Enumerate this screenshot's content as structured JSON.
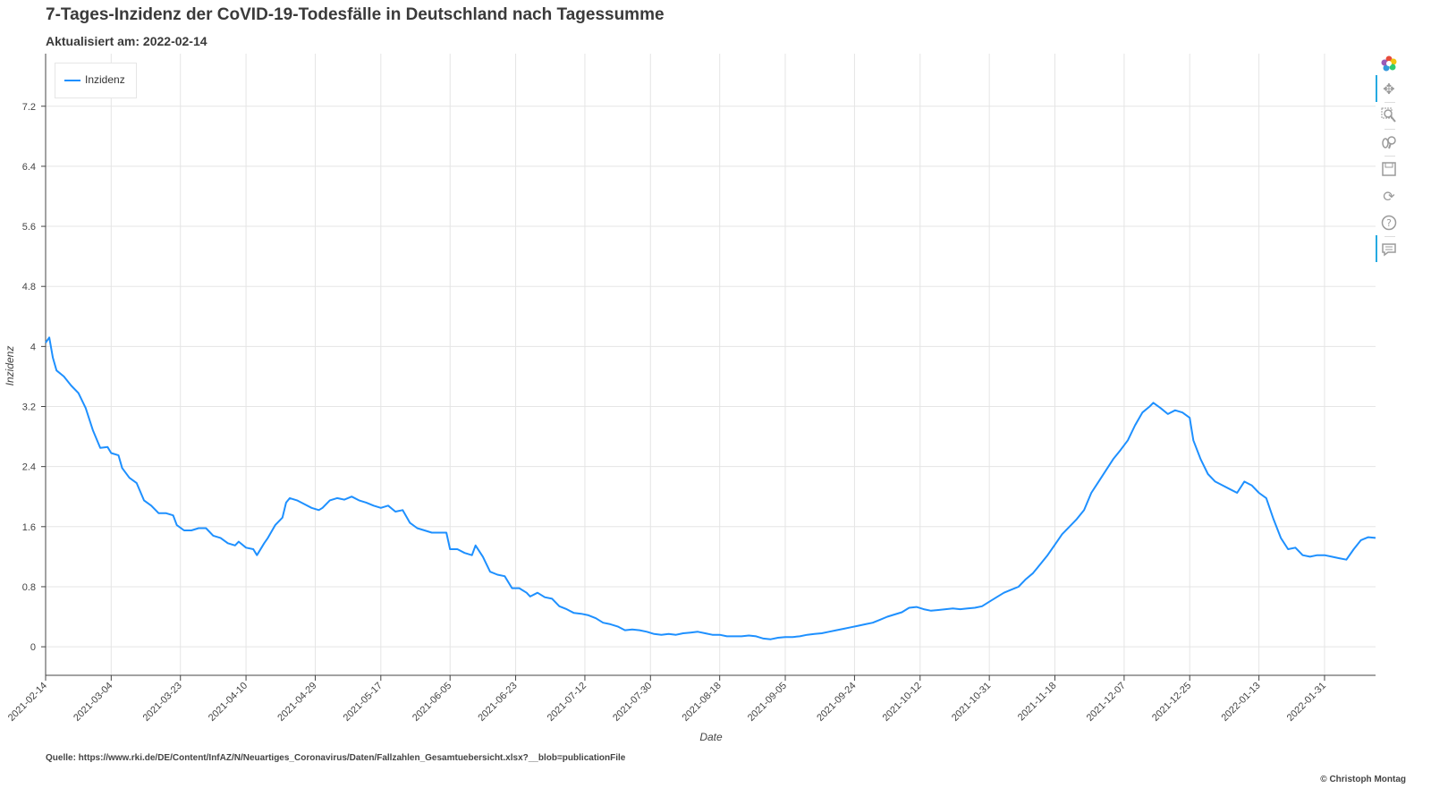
{
  "header": {
    "title": "7-Tages-Inzidenz der CoVID-19-Todesfälle in Deutschland nach Tagessumme",
    "subtitle": "Aktualisiert am: 2022-02-14"
  },
  "footer": {
    "source": "Quelle: https://www.rki.de/DE/Content/InfAZ/N/Neuartiges_Coronavirus/Daten/Fallzahlen_Gesamtuebersicht.xlsx?__blob=publicationFile",
    "copyright": "© Christoph Montag"
  },
  "toolbar": {
    "icons": [
      "bokeh-logo-icon",
      "pan-icon",
      "box-zoom-icon",
      "wheel-zoom-icon",
      "save-icon",
      "reset-icon",
      "help-icon",
      "hover-icon"
    ]
  },
  "chart_data": {
    "type": "line",
    "title": "7-Tages-Inzidenz der CoVID-19-Todesfälle in Deutschland nach Tagessumme",
    "subtitle": "Aktualisiert am: 2022-02-14",
    "xlabel": "Date",
    "ylabel": "Inzidenz",
    "x_range": [
      "2021-02-14",
      "2022-02-14"
    ],
    "ylim": [
      -0.38,
      7.9
    ],
    "y_ticks": [
      0,
      0.8,
      1.6,
      2.4,
      3.2,
      4,
      4.8,
      5.6,
      6.4,
      7.2
    ],
    "y_tick_labels": [
      "0",
      "0.8",
      "1.6",
      "2.4",
      "3.2",
      "4",
      "4.8",
      "5.6",
      "6.4",
      "7.2"
    ],
    "x_ticks": [
      "2021-02-14",
      "2021-03-04",
      "2021-03-23",
      "2021-04-10",
      "2021-04-29",
      "2021-05-17",
      "2021-06-05",
      "2021-06-23",
      "2021-07-12",
      "2021-07-30",
      "2021-08-18",
      "2021-09-05",
      "2021-09-24",
      "2021-10-12",
      "2021-10-31",
      "2021-11-18",
      "2021-12-07",
      "2021-12-25",
      "2022-01-13",
      "2022-01-31"
    ],
    "grid": true,
    "legend_position": "top-left",
    "series": [
      {
        "name": "Inzidenz",
        "color": "#1e90ff",
        "points": [
          [
            "2021-02-14",
            4.05
          ],
          [
            "2021-02-15",
            4.12
          ],
          [
            "2021-02-16",
            3.85
          ],
          [
            "2021-02-17",
            3.68
          ],
          [
            "2021-02-19",
            3.6
          ],
          [
            "2021-02-21",
            3.48
          ],
          [
            "2021-02-23",
            3.38
          ],
          [
            "2021-02-25",
            3.18
          ],
          [
            "2021-02-27",
            2.88
          ],
          [
            "2021-03-01",
            2.65
          ],
          [
            "2021-03-03",
            2.66
          ],
          [
            "2021-03-04",
            2.58
          ],
          [
            "2021-03-06",
            2.55
          ],
          [
            "2021-03-07",
            2.38
          ],
          [
            "2021-03-09",
            2.25
          ],
          [
            "2021-03-11",
            2.18
          ],
          [
            "2021-03-13",
            1.95
          ],
          [
            "2021-03-15",
            1.88
          ],
          [
            "2021-03-17",
            1.78
          ],
          [
            "2021-03-19",
            1.78
          ],
          [
            "2021-03-21",
            1.75
          ],
          [
            "2021-03-22",
            1.62
          ],
          [
            "2021-03-24",
            1.55
          ],
          [
            "2021-03-26",
            1.55
          ],
          [
            "2021-03-28",
            1.58
          ],
          [
            "2021-03-30",
            1.58
          ],
          [
            "2021-04-01",
            1.48
          ],
          [
            "2021-04-03",
            1.45
          ],
          [
            "2021-04-05",
            1.38
          ],
          [
            "2021-04-07",
            1.35
          ],
          [
            "2021-04-08",
            1.4
          ],
          [
            "2021-04-10",
            1.32
          ],
          [
            "2021-04-12",
            1.3
          ],
          [
            "2021-04-13",
            1.22
          ],
          [
            "2021-04-15",
            1.38
          ],
          [
            "2021-04-16",
            1.45
          ],
          [
            "2021-04-18",
            1.62
          ],
          [
            "2021-04-20",
            1.72
          ],
          [
            "2021-04-21",
            1.92
          ],
          [
            "2021-04-22",
            1.98
          ],
          [
            "2021-04-24",
            1.95
          ],
          [
            "2021-04-26",
            1.9
          ],
          [
            "2021-04-28",
            1.85
          ],
          [
            "2021-04-30",
            1.82
          ],
          [
            "2021-05-01",
            1.85
          ],
          [
            "2021-05-03",
            1.95
          ],
          [
            "2021-05-05",
            1.98
          ],
          [
            "2021-05-07",
            1.96
          ],
          [
            "2021-05-09",
            2.0
          ],
          [
            "2021-05-11",
            1.95
          ],
          [
            "2021-05-13",
            1.92
          ],
          [
            "2021-05-15",
            1.88
          ],
          [
            "2021-05-17",
            1.85
          ],
          [
            "2021-05-19",
            1.88
          ],
          [
            "2021-05-21",
            1.8
          ],
          [
            "2021-05-23",
            1.82
          ],
          [
            "2021-05-25",
            1.65
          ],
          [
            "2021-05-27",
            1.58
          ],
          [
            "2021-05-29",
            1.55
          ],
          [
            "2021-05-31",
            1.52
          ],
          [
            "2021-06-02",
            1.52
          ],
          [
            "2021-06-04",
            1.52
          ],
          [
            "2021-06-05",
            1.3
          ],
          [
            "2021-06-07",
            1.3
          ],
          [
            "2021-06-09",
            1.25
          ],
          [
            "2021-06-11",
            1.22
          ],
          [
            "2021-06-12",
            1.35
          ],
          [
            "2021-06-14",
            1.2
          ],
          [
            "2021-06-16",
            1.0
          ],
          [
            "2021-06-18",
            0.96
          ],
          [
            "2021-06-20",
            0.94
          ],
          [
            "2021-06-22",
            0.78
          ],
          [
            "2021-06-24",
            0.78
          ],
          [
            "2021-06-26",
            0.72
          ],
          [
            "2021-06-27",
            0.67
          ],
          [
            "2021-06-29",
            0.72
          ],
          [
            "2021-07-01",
            0.66
          ],
          [
            "2021-07-03",
            0.64
          ],
          [
            "2021-07-05",
            0.54
          ],
          [
            "2021-07-07",
            0.5
          ],
          [
            "2021-07-09",
            0.45
          ],
          [
            "2021-07-11",
            0.44
          ],
          [
            "2021-07-13",
            0.42
          ],
          [
            "2021-07-15",
            0.38
          ],
          [
            "2021-07-17",
            0.32
          ],
          [
            "2021-07-19",
            0.3
          ],
          [
            "2021-07-21",
            0.27
          ],
          [
            "2021-07-23",
            0.22
          ],
          [
            "2021-07-25",
            0.23
          ],
          [
            "2021-07-27",
            0.22
          ],
          [
            "2021-07-29",
            0.2
          ],
          [
            "2021-07-31",
            0.17
          ],
          [
            "2021-08-02",
            0.16
          ],
          [
            "2021-08-04",
            0.17
          ],
          [
            "2021-08-06",
            0.16
          ],
          [
            "2021-08-08",
            0.18
          ],
          [
            "2021-08-10",
            0.19
          ],
          [
            "2021-08-12",
            0.2
          ],
          [
            "2021-08-14",
            0.18
          ],
          [
            "2021-08-16",
            0.16
          ],
          [
            "2021-08-18",
            0.16
          ],
          [
            "2021-08-20",
            0.14
          ],
          [
            "2021-08-22",
            0.14
          ],
          [
            "2021-08-24",
            0.14
          ],
          [
            "2021-08-26",
            0.15
          ],
          [
            "2021-08-28",
            0.14
          ],
          [
            "2021-08-30",
            0.11
          ],
          [
            "2021-09-01",
            0.1
          ],
          [
            "2021-09-03",
            0.12
          ],
          [
            "2021-09-05",
            0.13
          ],
          [
            "2021-09-07",
            0.13
          ],
          [
            "2021-09-09",
            0.14
          ],
          [
            "2021-09-11",
            0.16
          ],
          [
            "2021-09-13",
            0.17
          ],
          [
            "2021-09-15",
            0.18
          ],
          [
            "2021-09-17",
            0.2
          ],
          [
            "2021-09-19",
            0.22
          ],
          [
            "2021-09-21",
            0.24
          ],
          [
            "2021-09-23",
            0.26
          ],
          [
            "2021-09-25",
            0.28
          ],
          [
            "2021-09-27",
            0.3
          ],
          [
            "2021-09-29",
            0.32
          ],
          [
            "2021-10-01",
            0.36
          ],
          [
            "2021-10-03",
            0.4
          ],
          [
            "2021-10-05",
            0.43
          ],
          [
            "2021-10-07",
            0.46
          ],
          [
            "2021-10-09",
            0.52
          ],
          [
            "2021-10-11",
            0.53
          ],
          [
            "2021-10-13",
            0.5
          ],
          [
            "2021-10-15",
            0.48
          ],
          [
            "2021-10-17",
            0.49
          ],
          [
            "2021-10-19",
            0.5
          ],
          [
            "2021-10-21",
            0.51
          ],
          [
            "2021-10-23",
            0.5
          ],
          [
            "2021-10-25",
            0.51
          ],
          [
            "2021-10-27",
            0.52
          ],
          [
            "2021-10-29",
            0.54
          ],
          [
            "2021-10-31",
            0.6
          ],
          [
            "2021-11-02",
            0.66
          ],
          [
            "2021-11-04",
            0.72
          ],
          [
            "2021-11-06",
            0.76
          ],
          [
            "2021-11-08",
            0.8
          ],
          [
            "2021-11-10",
            0.9
          ],
          [
            "2021-11-12",
            0.98
          ],
          [
            "2021-11-14",
            1.1
          ],
          [
            "2021-11-16",
            1.22
          ],
          [
            "2021-11-18",
            1.36
          ],
          [
            "2021-11-20",
            1.5
          ],
          [
            "2021-11-22",
            1.6
          ],
          [
            "2021-11-24",
            1.7
          ],
          [
            "2021-11-26",
            1.82
          ],
          [
            "2021-11-28",
            2.05
          ],
          [
            "2021-11-30",
            2.2
          ],
          [
            "2021-12-02",
            2.35
          ],
          [
            "2021-12-04",
            2.5
          ],
          [
            "2021-12-06",
            2.62
          ],
          [
            "2021-12-08",
            2.75
          ],
          [
            "2021-12-10",
            2.95
          ],
          [
            "2021-12-12",
            3.12
          ],
          [
            "2021-12-14",
            3.2
          ],
          [
            "2021-12-15",
            3.25
          ],
          [
            "2021-12-17",
            3.18
          ],
          [
            "2021-12-19",
            3.1
          ],
          [
            "2021-12-21",
            3.15
          ],
          [
            "2021-12-23",
            3.12
          ],
          [
            "2021-12-25",
            3.05
          ],
          [
            "2021-12-26",
            2.75
          ],
          [
            "2021-12-28",
            2.5
          ],
          [
            "2021-12-30",
            2.3
          ],
          [
            "2022-01-01",
            2.2
          ],
          [
            "2022-01-03",
            2.15
          ],
          [
            "2022-01-05",
            2.1
          ],
          [
            "2022-01-07",
            2.05
          ],
          [
            "2022-01-09",
            2.2
          ],
          [
            "2022-01-11",
            2.15
          ],
          [
            "2022-01-13",
            2.05
          ],
          [
            "2022-01-15",
            1.98
          ],
          [
            "2022-01-17",
            1.7
          ],
          [
            "2022-01-19",
            1.45
          ],
          [
            "2022-01-21",
            1.3
          ],
          [
            "2022-01-23",
            1.32
          ],
          [
            "2022-01-25",
            1.22
          ],
          [
            "2022-01-27",
            1.2
          ],
          [
            "2022-01-29",
            1.22
          ],
          [
            "2022-01-31",
            1.22
          ],
          [
            "2022-02-02",
            1.2
          ],
          [
            "2022-02-04",
            1.18
          ],
          [
            "2022-02-06",
            1.16
          ],
          [
            "2022-02-08",
            1.3
          ],
          [
            "2022-02-10",
            1.42
          ],
          [
            "2022-02-12",
            1.46
          ],
          [
            "2022-02-14",
            1.45
          ]
        ]
      }
    ]
  }
}
